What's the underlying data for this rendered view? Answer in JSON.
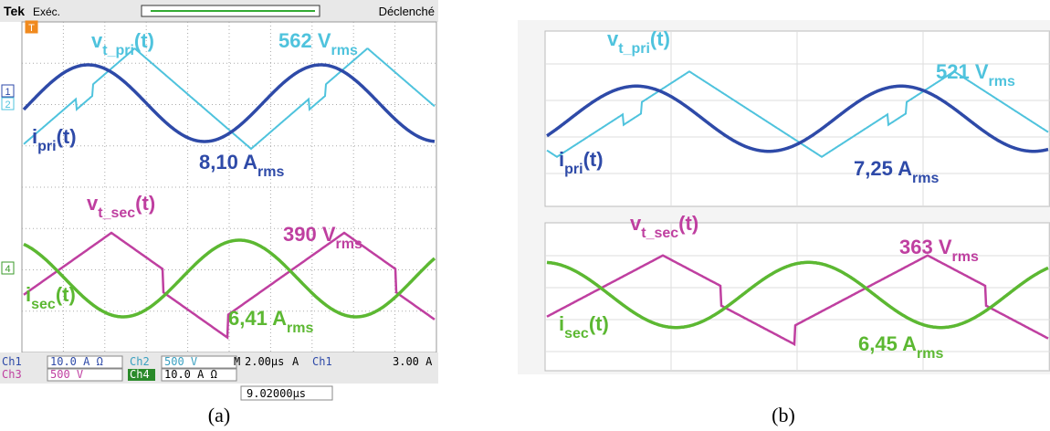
{
  "panels": [
    {
      "caption": "(a)",
      "header": {
        "brand": "Tek",
        "state": "Exéc.",
        "trigger": "Déclenché"
      },
      "markers": [
        "T",
        "1",
        "2",
        "4"
      ],
      "labels": [
        {
          "text": "v",
          "sub": "t_pri",
          "tail": "(t)",
          "color": "#4fc3dd"
        },
        {
          "text": "562 V",
          "sub": "rms",
          "color": "#4fc3dd"
        },
        {
          "text": "i",
          "sub": "pri",
          "tail": "(t)",
          "color": "#2e4aa8"
        },
        {
          "text": "8,10 A",
          "sub": "rms",
          "color": "#2e4aa8"
        },
        {
          "text": "v",
          "sub": "t_sec",
          "tail": "(t)",
          "color": "#bf3fa0"
        },
        {
          "text": "390 V",
          "sub": "rms",
          "color": "#bf3fa0"
        },
        {
          "text": "i",
          "sub": "sec",
          "tail": "(t)",
          "color": "#5cb832"
        },
        {
          "text": "6,41 A",
          "sub": "rms",
          "color": "#5cb832"
        }
      ],
      "status": [
        [
          "Ch1",
          "10.0 A Ω",
          "Ch2",
          "500 V",
          "M",
          "2.00µs",
          "A",
          "Ch1",
          "3.00 A"
        ],
        [
          "Ch3",
          "500 V",
          "Ch4",
          "10.0 A Ω"
        ]
      ],
      "trigger_position": "9.02000µs"
    },
    {
      "caption": "(b)",
      "labels": [
        {
          "text": "v",
          "sub": "t_pri",
          "tail": "(t)",
          "color": "#4fc3dd"
        },
        {
          "text": "521 V",
          "sub": "rms",
          "color": "#4fc3dd"
        },
        {
          "text": "i",
          "sub": "pri",
          "tail": "(t)",
          "color": "#2e4aa8"
        },
        {
          "text": "7,25 A",
          "sub": "rms",
          "color": "#2e4aa8"
        },
        {
          "text": "v",
          "sub": "t_sec",
          "tail": "(t)",
          "color": "#bf3fa0"
        },
        {
          "text": "363 V",
          "sub": "rms",
          "color": "#bf3fa0"
        },
        {
          "text": "i",
          "sub": "sec",
          "tail": "(t)",
          "color": "#5cb832"
        },
        {
          "text": "6,45 A",
          "sub": "rms",
          "color": "#5cb832"
        }
      ]
    }
  ]
}
